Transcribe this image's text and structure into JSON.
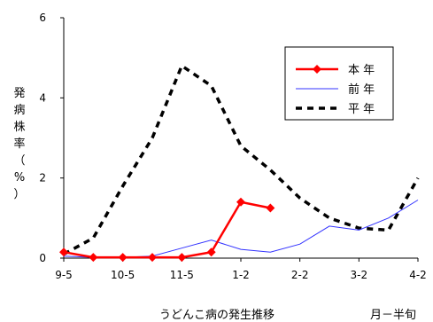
{
  "chart_data": {
    "type": "line",
    "x_ticks": [
      "9-5",
      "10-5",
      "11-5",
      "1-2",
      "2-2",
      "3-2",
      "4-2"
    ],
    "x_index_range": [
      0,
      12
    ],
    "ylim": [
      0,
      6
    ],
    "y_ticks": [
      "0",
      "2",
      "4",
      "6"
    ],
    "ylabel_chars": [
      "発",
      "病",
      "株",
      "率",
      "（",
      "%",
      "）"
    ],
    "caption": "うどんこ病の発生推移",
    "unit_label": "月－半旬",
    "legend_position": "top-right",
    "series": [
      {
        "name": "本 年",
        "color": "#ff0000",
        "style": "solid-marker",
        "x": [
          0,
          1,
          2,
          3,
          4,
          5,
          6,
          7
        ],
        "y": [
          0.15,
          0.02,
          0.02,
          0.02,
          0.02,
          0.15,
          1.4,
          1.25
        ]
      },
      {
        "name": "前 年",
        "color": "#3333ff",
        "style": "solid",
        "x": [
          0,
          1,
          2,
          3,
          4,
          5,
          6,
          7,
          8,
          9,
          10,
          11,
          12
        ],
        "y": [
          0.05,
          0.02,
          0.02,
          0.05,
          0.25,
          0.45,
          0.22,
          0.15,
          0.35,
          0.8,
          0.7,
          1.0,
          1.45
        ]
      },
      {
        "name": "平 年",
        "color": "#000000",
        "style": "dashed",
        "x": [
          0,
          1,
          2,
          3,
          4,
          5,
          6,
          7,
          8,
          9,
          10,
          11,
          12
        ],
        "y": [
          0.1,
          0.5,
          1.8,
          3.0,
          4.8,
          4.3,
          2.8,
          2.2,
          1.5,
          1.0,
          0.75,
          0.7,
          2.0
        ]
      }
    ]
  }
}
